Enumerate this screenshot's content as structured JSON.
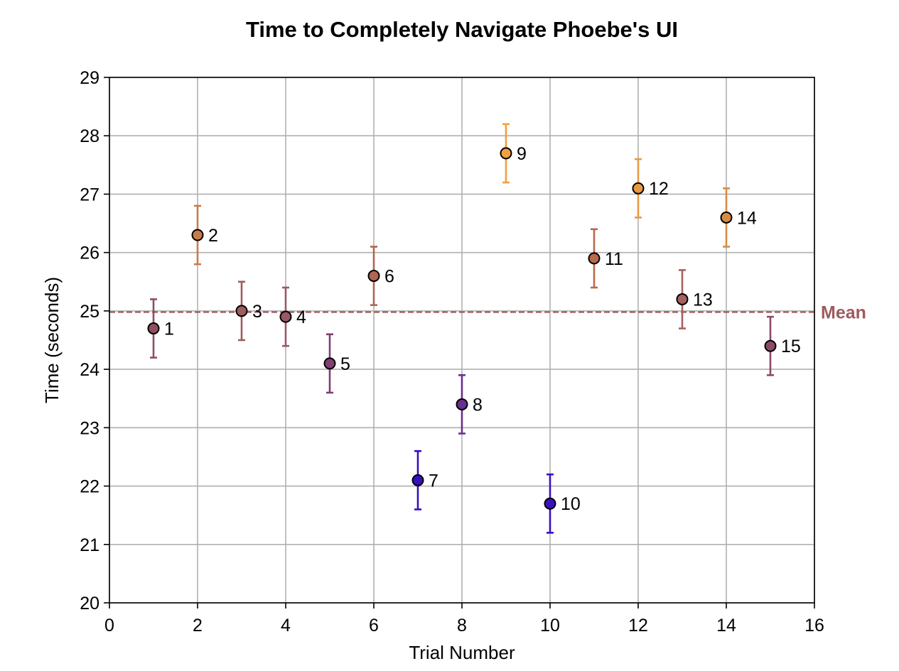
{
  "chart_data": {
    "type": "scatter",
    "title": "Time to Completely Navigate Phoebe's UI",
    "xlabel": "Trial Number",
    "ylabel": "Time (seconds)",
    "xlim": [
      0,
      16
    ],
    "ylim": [
      20,
      29
    ],
    "xticks": [
      "0",
      "2",
      "4",
      "6",
      "8",
      "10",
      "12",
      "14",
      "16"
    ],
    "yticks": [
      "20",
      "21",
      "22",
      "23",
      "24",
      "25",
      "26",
      "27",
      "28",
      "29"
    ],
    "grid": true,
    "error": 0.5,
    "points": [
      {
        "x": 1,
        "y": 24.7,
        "label": "1",
        "color": "#8e4f60"
      },
      {
        "x": 2,
        "y": 26.3,
        "label": "2",
        "color": "#c87c48"
      },
      {
        "x": 3,
        "y": 25.0,
        "label": "3",
        "color": "#9e5c5c"
      },
      {
        "x": 4,
        "y": 24.9,
        "label": "4",
        "color": "#995866"
      },
      {
        "x": 5,
        "y": 24.1,
        "label": "5",
        "color": "#803f70"
      },
      {
        "x": 6,
        "y": 25.6,
        "label": "6",
        "color": "#b06652"
      },
      {
        "x": 7,
        "y": 22.1,
        "label": "7",
        "color": "#3a10bc"
      },
      {
        "x": 8,
        "y": 23.4,
        "label": "8",
        "color": "#6a3090"
      },
      {
        "x": 9,
        "y": 27.7,
        "label": "9",
        "color": "#f0a040"
      },
      {
        "x": 10,
        "y": 21.7,
        "label": "10",
        "color": "#3a10c0"
      },
      {
        "x": 11,
        "y": 25.9,
        "label": "11",
        "color": "#b86a4c"
      },
      {
        "x": 12,
        "y": 27.1,
        "label": "12",
        "color": "#e89a40"
      },
      {
        "x": 13,
        "y": 25.2,
        "label": "13",
        "color": "#a86060"
      },
      {
        "x": 14,
        "y": 26.6,
        "label": "14",
        "color": "#d88a44"
      },
      {
        "x": 15,
        "y": 24.4,
        "label": "15",
        "color": "#8a4a68"
      }
    ],
    "mean": {
      "y": 24.98,
      "label": "Mean",
      "color": "#9e5a5f"
    }
  }
}
